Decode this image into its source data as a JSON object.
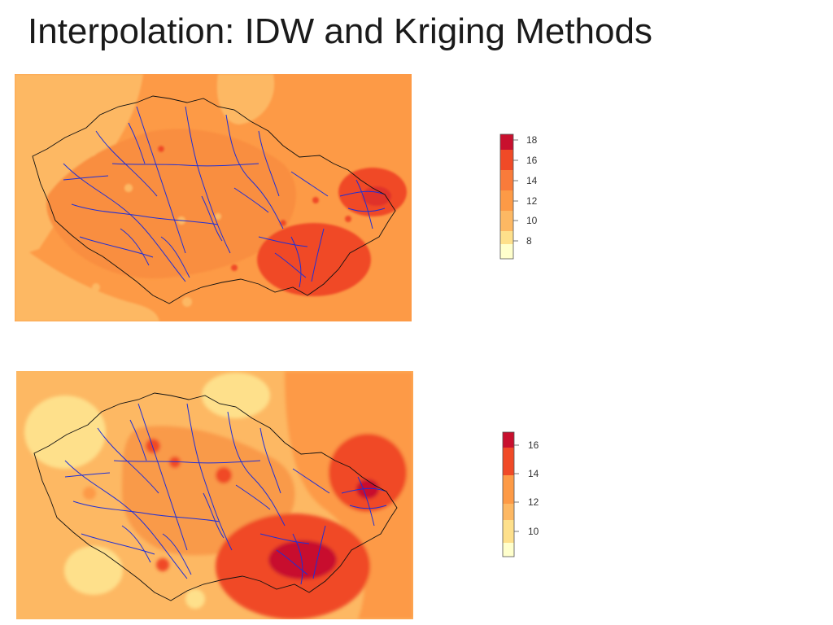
{
  "slide": {
    "title": "Interpolation: IDW and Kriging Methods"
  },
  "maps": [
    {
      "method": "IDW",
      "palette": [
        "#ffffcc",
        "#fee08b",
        "#fdb863",
        "#fd9a46",
        "#f97b3a",
        "#f04a27",
        "#c8102e"
      ],
      "legend": {
        "labels": [
          "18",
          "16",
          "14",
          "12",
          "10",
          "8"
        ],
        "colors": [
          "#c8102e",
          "#f04a27",
          "#f97b3a",
          "#fd9a46",
          "#fdb863",
          "#fee08b",
          "#ffffcc"
        ]
      }
    },
    {
      "method": "Kriging",
      "palette": [
        "#ffffcc",
        "#fee08b",
        "#fdb863",
        "#fd9a46",
        "#f04a27",
        "#c8102e"
      ],
      "legend": {
        "labels": [
          "16",
          "14",
          "12",
          "10"
        ],
        "colors": [
          "#c8102e",
          "#f04a27",
          "#fd9a46",
          "#fdb863",
          "#fee08b",
          "#ffffcc"
        ]
      }
    }
  ],
  "colors": {
    "river": "#1f2fd6",
    "border": "#111111",
    "background": "#ffffff"
  }
}
